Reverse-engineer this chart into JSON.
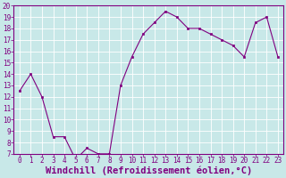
{
  "x": [
    0,
    1,
    2,
    3,
    4,
    5,
    6,
    7,
    8,
    9,
    10,
    11,
    12,
    13,
    14,
    15,
    16,
    17,
    18,
    19,
    20,
    21,
    22,
    23
  ],
  "y": [
    12.5,
    14.0,
    12.0,
    8.5,
    8.5,
    6.5,
    7.5,
    7.0,
    7.0,
    13.0,
    15.5,
    17.5,
    18.5,
    19.5,
    19.0,
    18.0,
    18.0,
    17.5,
    17.0,
    16.5,
    15.5,
    18.5,
    19.0,
    15.5
  ],
  "line_color": "#800080",
  "marker_color": "#800080",
  "bg_color": "#c8e8e8",
  "grid_color": "#b0d0d0",
  "xlabel": "Windchill (Refroidissement éolien,°C)",
  "ylim": [
    7,
    20
  ],
  "xlim": [
    -0.5,
    23.5
  ],
  "yticks": [
    7,
    8,
    9,
    10,
    11,
    12,
    13,
    14,
    15,
    16,
    17,
    18,
    19,
    20
  ],
  "xticks": [
    0,
    1,
    2,
    3,
    4,
    5,
    6,
    7,
    8,
    9,
    10,
    11,
    12,
    13,
    14,
    15,
    16,
    17,
    18,
    19,
    20,
    21,
    22,
    23
  ],
  "tick_fontsize": 5.5,
  "xlabel_fontsize": 7.5,
  "spine_color": "#800080",
  "axis_bg": "#c8e8e8"
}
